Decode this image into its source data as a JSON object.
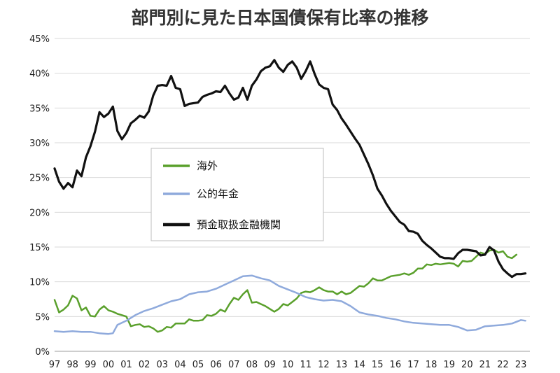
{
  "chart_data": {
    "type": "line",
    "title": "部門別に見た日本国債保有比率の推移",
    "ylim": [
      0,
      45
    ],
    "y_ticks": [
      "0%",
      "5%",
      "10%",
      "15%",
      "20%",
      "25%",
      "30%",
      "35%",
      "40%",
      "45%"
    ],
    "x_ticks": [
      "97",
      "98",
      "99",
      "00",
      "01",
      "02",
      "03",
      "04",
      "05",
      "06",
      "07",
      "08",
      "09",
      "10",
      "11",
      "12",
      "13",
      "14",
      "15",
      "16",
      "17",
      "18",
      "19",
      "20",
      "21",
      "22",
      "23"
    ],
    "x_range": [
      1997,
      2023.5
    ],
    "grid": true,
    "legend_position": "center",
    "series": [
      {
        "name": "海外",
        "color": "#5aa02c",
        "points": [
          [
            1997.0,
            7.4
          ],
          [
            1997.25,
            5.6
          ],
          [
            1997.5,
            6.0
          ],
          [
            1997.75,
            6.6
          ],
          [
            1998.0,
            8.0
          ],
          [
            1998.25,
            7.6
          ],
          [
            1998.5,
            5.9
          ],
          [
            1998.75,
            6.3
          ],
          [
            1999.0,
            5.1
          ],
          [
            1999.25,
            5.0
          ],
          [
            1999.5,
            6.0
          ],
          [
            1999.75,
            6.5
          ],
          [
            2000.0,
            5.9
          ],
          [
            2000.25,
            5.7
          ],
          [
            2000.5,
            5.4
          ],
          [
            2000.75,
            5.2
          ],
          [
            2001.0,
            5.0
          ],
          [
            2001.25,
            3.6
          ],
          [
            2001.5,
            3.8
          ],
          [
            2001.75,
            3.9
          ],
          [
            2002.0,
            3.5
          ],
          [
            2002.25,
            3.6
          ],
          [
            2002.5,
            3.3
          ],
          [
            2002.75,
            2.8
          ],
          [
            2003.0,
            3.0
          ],
          [
            2003.25,
            3.5
          ],
          [
            2003.5,
            3.4
          ],
          [
            2003.75,
            4.0
          ],
          [
            2004.0,
            4.0
          ],
          [
            2004.25,
            4.0
          ],
          [
            2004.5,
            4.6
          ],
          [
            2004.75,
            4.4
          ],
          [
            2005.0,
            4.4
          ],
          [
            2005.25,
            4.5
          ],
          [
            2005.5,
            5.2
          ],
          [
            2005.75,
            5.1
          ],
          [
            2006.0,
            5.4
          ],
          [
            2006.25,
            6.0
          ],
          [
            2006.5,
            5.7
          ],
          [
            2006.75,
            6.8
          ],
          [
            2007.0,
            7.7
          ],
          [
            2007.25,
            7.4
          ],
          [
            2007.5,
            8.2
          ],
          [
            2007.75,
            8.8
          ],
          [
            2008.0,
            7.0
          ],
          [
            2008.25,
            7.1
          ],
          [
            2008.5,
            6.8
          ],
          [
            2008.75,
            6.5
          ],
          [
            2009.0,
            6.1
          ],
          [
            2009.25,
            5.7
          ],
          [
            2009.5,
            6.1
          ],
          [
            2009.75,
            6.8
          ],
          [
            2010.0,
            6.6
          ],
          [
            2010.25,
            7.1
          ],
          [
            2010.5,
            7.6
          ],
          [
            2010.75,
            8.4
          ],
          [
            2011.0,
            8.6
          ],
          [
            2011.25,
            8.5
          ],
          [
            2011.5,
            8.8
          ],
          [
            2011.75,
            9.2
          ],
          [
            2012.0,
            8.8
          ],
          [
            2012.25,
            8.6
          ],
          [
            2012.5,
            8.6
          ],
          [
            2012.75,
            8.2
          ],
          [
            2013.0,
            8.6
          ],
          [
            2013.25,
            8.2
          ],
          [
            2013.5,
            8.4
          ],
          [
            2013.75,
            8.9
          ],
          [
            2014.0,
            9.4
          ],
          [
            2014.25,
            9.3
          ],
          [
            2014.5,
            9.8
          ],
          [
            2014.75,
            10.5
          ],
          [
            2015.0,
            10.2
          ],
          [
            2015.25,
            10.2
          ],
          [
            2015.5,
            10.5
          ],
          [
            2015.75,
            10.8
          ],
          [
            2016.0,
            10.9
          ],
          [
            2016.25,
            11.0
          ],
          [
            2016.5,
            11.2
          ],
          [
            2016.75,
            11.0
          ],
          [
            2017.0,
            11.3
          ],
          [
            2017.25,
            11.9
          ],
          [
            2017.5,
            11.9
          ],
          [
            2017.75,
            12.5
          ],
          [
            2018.0,
            12.4
          ],
          [
            2018.25,
            12.6
          ],
          [
            2018.5,
            12.5
          ],
          [
            2018.75,
            12.6
          ],
          [
            2019.0,
            12.7
          ],
          [
            2019.25,
            12.6
          ],
          [
            2019.5,
            12.2
          ],
          [
            2019.75,
            13.0
          ],
          [
            2020.0,
            12.9
          ],
          [
            2020.25,
            13.0
          ],
          [
            2020.5,
            13.6
          ],
          [
            2020.75,
            14.2
          ],
          [
            2021.0,
            14.0
          ],
          [
            2021.25,
            14.5
          ],
          [
            2021.5,
            14.6
          ],
          [
            2021.75,
            14.2
          ],
          [
            2022.0,
            14.4
          ],
          [
            2022.25,
            13.6
          ],
          [
            2022.5,
            13.4
          ],
          [
            2022.75,
            13.9
          ]
        ]
      },
      {
        "name": "公的年金",
        "color": "#8faadc",
        "points": [
          [
            1997.0,
            2.9
          ],
          [
            1997.5,
            2.8
          ],
          [
            1998.0,
            2.9
          ],
          [
            1998.5,
            2.8
          ],
          [
            1999.0,
            2.8
          ],
          [
            1999.5,
            2.6
          ],
          [
            2000.0,
            2.5
          ],
          [
            2000.25,
            2.6
          ],
          [
            2000.5,
            3.8
          ],
          [
            2001.0,
            4.4
          ],
          [
            2001.5,
            5.2
          ],
          [
            2002.0,
            5.8
          ],
          [
            2002.5,
            6.2
          ],
          [
            2003.0,
            6.7
          ],
          [
            2003.5,
            7.2
          ],
          [
            2004.0,
            7.5
          ],
          [
            2004.5,
            8.2
          ],
          [
            2005.0,
            8.5
          ],
          [
            2005.5,
            8.6
          ],
          [
            2006.0,
            9.0
          ],
          [
            2006.5,
            9.6
          ],
          [
            2007.0,
            10.2
          ],
          [
            2007.5,
            10.8
          ],
          [
            2008.0,
            10.9
          ],
          [
            2008.5,
            10.5
          ],
          [
            2009.0,
            10.2
          ],
          [
            2009.5,
            9.4
          ],
          [
            2010.0,
            8.9
          ],
          [
            2010.5,
            8.4
          ],
          [
            2011.0,
            7.8
          ],
          [
            2011.5,
            7.5
          ],
          [
            2012.0,
            7.3
          ],
          [
            2012.5,
            7.4
          ],
          [
            2013.0,
            7.2
          ],
          [
            2013.5,
            6.5
          ],
          [
            2014.0,
            5.6
          ],
          [
            2014.5,
            5.3
          ],
          [
            2015.0,
            5.1
          ],
          [
            2015.5,
            4.8
          ],
          [
            2016.0,
            4.6
          ],
          [
            2016.5,
            4.3
          ],
          [
            2017.0,
            4.1
          ],
          [
            2017.5,
            4.0
          ],
          [
            2018.0,
            3.9
          ],
          [
            2018.5,
            3.8
          ],
          [
            2019.0,
            3.8
          ],
          [
            2019.5,
            3.5
          ],
          [
            2020.0,
            3.0
          ],
          [
            2020.5,
            3.1
          ],
          [
            2021.0,
            3.6
          ],
          [
            2021.5,
            3.7
          ],
          [
            2022.0,
            3.8
          ],
          [
            2022.5,
            4.0
          ],
          [
            2023.0,
            4.5
          ],
          [
            2023.25,
            4.4
          ]
        ]
      },
      {
        "name": "預金取扱金融機関",
        "color": "#111111",
        "points": [
          [
            1997.0,
            26.3
          ],
          [
            1997.25,
            24.4
          ],
          [
            1997.5,
            23.4
          ],
          [
            1997.75,
            24.2
          ],
          [
            1998.0,
            23.6
          ],
          [
            1998.25,
            26.0
          ],
          [
            1998.5,
            25.2
          ],
          [
            1998.75,
            27.9
          ],
          [
            1999.0,
            29.5
          ],
          [
            1999.25,
            31.6
          ],
          [
            1999.5,
            34.4
          ],
          [
            1999.75,
            33.7
          ],
          [
            2000.0,
            34.2
          ],
          [
            2000.25,
            35.2
          ],
          [
            2000.5,
            31.7
          ],
          [
            2000.75,
            30.5
          ],
          [
            2001.0,
            31.4
          ],
          [
            2001.25,
            32.8
          ],
          [
            2001.5,
            33.3
          ],
          [
            2001.75,
            33.9
          ],
          [
            2002.0,
            33.6
          ],
          [
            2002.25,
            34.5
          ],
          [
            2002.5,
            36.8
          ],
          [
            2002.75,
            38.2
          ],
          [
            2003.0,
            38.3
          ],
          [
            2003.25,
            38.2
          ],
          [
            2003.5,
            39.6
          ],
          [
            2003.75,
            37.9
          ],
          [
            2004.0,
            37.7
          ],
          [
            2004.25,
            35.3
          ],
          [
            2004.5,
            35.6
          ],
          [
            2004.75,
            35.7
          ],
          [
            2005.0,
            35.8
          ],
          [
            2005.25,
            36.6
          ],
          [
            2005.5,
            36.9
          ],
          [
            2005.75,
            37.1
          ],
          [
            2006.0,
            37.4
          ],
          [
            2006.25,
            37.3
          ],
          [
            2006.5,
            38.2
          ],
          [
            2006.75,
            37.1
          ],
          [
            2007.0,
            36.2
          ],
          [
            2007.25,
            36.5
          ],
          [
            2007.5,
            37.9
          ],
          [
            2007.75,
            36.2
          ],
          [
            2008.0,
            38.2
          ],
          [
            2008.25,
            39.1
          ],
          [
            2008.5,
            40.3
          ],
          [
            2008.75,
            40.8
          ],
          [
            2009.0,
            41.0
          ],
          [
            2009.25,
            41.9
          ],
          [
            2009.5,
            40.8
          ],
          [
            2009.75,
            40.2
          ],
          [
            2010.0,
            41.2
          ],
          [
            2010.25,
            41.7
          ],
          [
            2010.5,
            40.8
          ],
          [
            2010.75,
            39.2
          ],
          [
            2011.0,
            40.3
          ],
          [
            2011.25,
            41.7
          ],
          [
            2011.5,
            39.9
          ],
          [
            2011.75,
            38.4
          ],
          [
            2012.0,
            37.9
          ],
          [
            2012.25,
            37.7
          ],
          [
            2012.5,
            35.5
          ],
          [
            2012.75,
            34.7
          ],
          [
            2013.0,
            33.5
          ],
          [
            2013.25,
            32.6
          ],
          [
            2013.5,
            31.6
          ],
          [
            2013.75,
            30.6
          ],
          [
            2014.0,
            29.7
          ],
          [
            2014.25,
            28.3
          ],
          [
            2014.5,
            26.9
          ],
          [
            2014.75,
            25.3
          ],
          [
            2015.0,
            23.4
          ],
          [
            2015.25,
            22.4
          ],
          [
            2015.5,
            21.2
          ],
          [
            2015.75,
            20.2
          ],
          [
            2016.0,
            19.4
          ],
          [
            2016.25,
            18.6
          ],
          [
            2016.5,
            18.2
          ],
          [
            2016.75,
            17.3
          ],
          [
            2017.0,
            17.2
          ],
          [
            2017.25,
            16.9
          ],
          [
            2017.5,
            15.9
          ],
          [
            2017.75,
            15.3
          ],
          [
            2018.0,
            14.8
          ],
          [
            2018.25,
            14.2
          ],
          [
            2018.5,
            13.6
          ],
          [
            2018.75,
            13.4
          ],
          [
            2019.0,
            13.4
          ],
          [
            2019.25,
            13.3
          ],
          [
            2019.5,
            14.1
          ],
          [
            2019.75,
            14.6
          ],
          [
            2020.0,
            14.6
          ],
          [
            2020.25,
            14.5
          ],
          [
            2020.5,
            14.4
          ],
          [
            2020.75,
            13.8
          ],
          [
            2021.0,
            13.9
          ],
          [
            2021.25,
            15.0
          ],
          [
            2021.5,
            14.5
          ],
          [
            2021.75,
            12.9
          ],
          [
            2022.0,
            11.8
          ],
          [
            2022.25,
            11.2
          ],
          [
            2022.5,
            10.7
          ],
          [
            2022.75,
            11.1
          ],
          [
            2023.0,
            11.1
          ],
          [
            2023.25,
            11.2
          ]
        ]
      }
    ]
  }
}
